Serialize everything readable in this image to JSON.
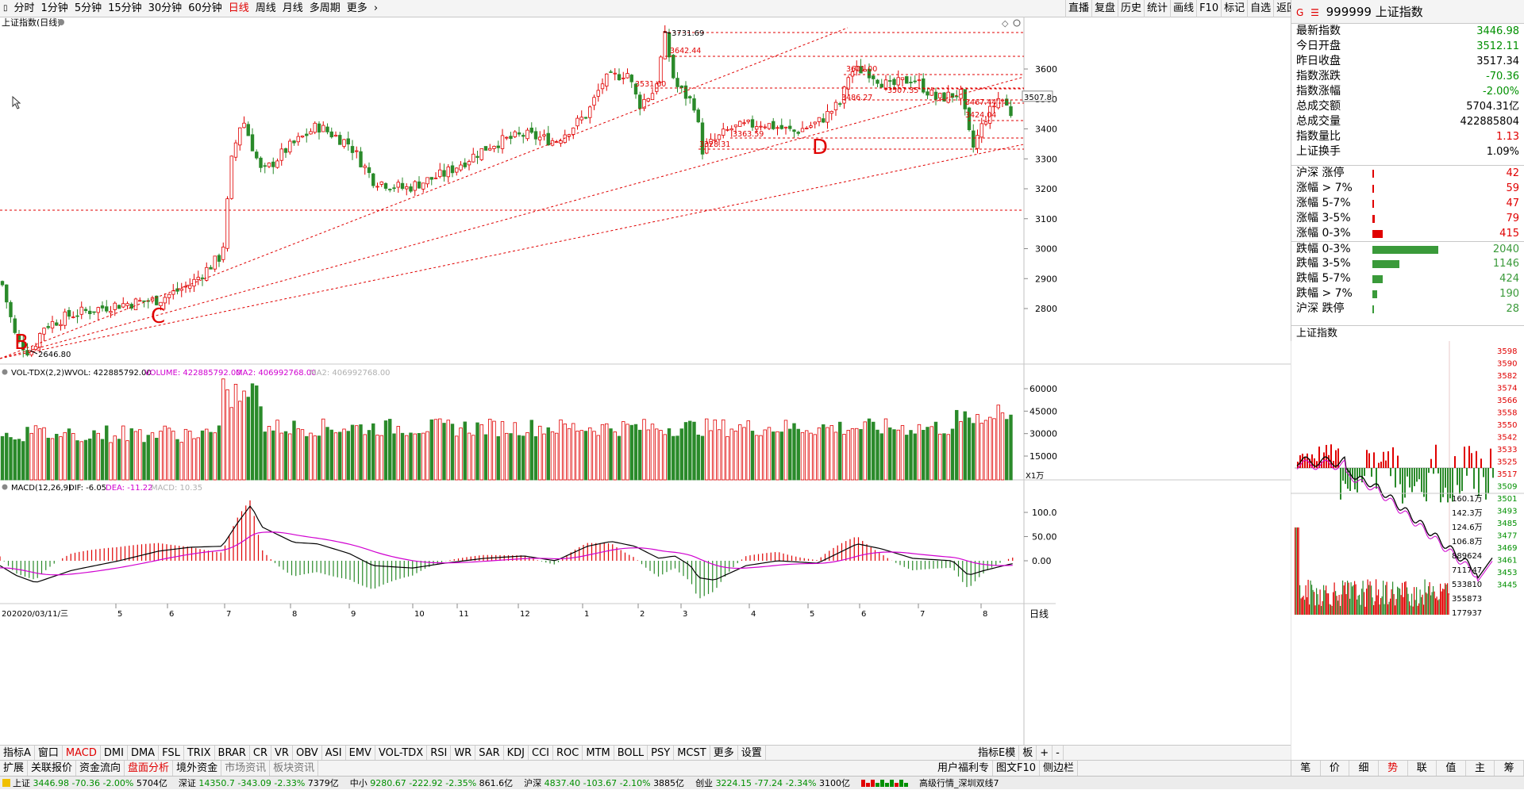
{
  "toolbar": {
    "periods": [
      {
        "label": "分时",
        "active": false
      },
      {
        "label": "1分钟",
        "active": false
      },
      {
        "label": "5分钟",
        "active": false
      },
      {
        "label": "15分钟",
        "active": false
      },
      {
        "label": "30分钟",
        "active": false
      },
      {
        "label": "60分钟",
        "active": false
      },
      {
        "label": "日线",
        "active": true
      },
      {
        "label": "周线",
        "active": false
      },
      {
        "label": "月线",
        "active": false
      },
      {
        "label": "多周期",
        "active": false
      },
      {
        "label": "更多",
        "active": false
      }
    ],
    "right_buttons": [
      "直播",
      "复盘",
      "历史",
      "统计",
      "画线",
      "F10",
      "标记",
      "自选",
      "返回"
    ]
  },
  "chart_title": "上证指数(日线)",
  "main_chart": {
    "price_axis": [
      "3600",
      "3500",
      "3400",
      "3300",
      "3200",
      "3100",
      "3000",
      "2900",
      "2800"
    ],
    "current_price_tag": "3507.8",
    "high_label": "3731.69",
    "low_label": "2646.80",
    "level_labels": [
      "3642.44",
      "3531.60",
      "3486.27",
      "3507.35",
      "3601.00",
      "3467.44",
      "3424.04",
      "3363.59",
      "3328.31"
    ],
    "annotations": [
      "B",
      "C",
      "D"
    ]
  },
  "volume_panel": {
    "title": "VOL-TDX(2,2)",
    "wvol": "WVOL: 422885792.00",
    "volume": "VOLUME: 422885792.00",
    "ma2": "MA2: 406992768.00",
    "ma2b": "MA2: 406992768.00",
    "axis": [
      "60000",
      "45000",
      "30000",
      "15000"
    ],
    "unit": "X1万"
  },
  "macd_panel": {
    "title": "MACD(12,26,9)",
    "dif": "DIF: -6.05",
    "dea": "DEA: -11.22",
    "macd": "MACD: 10.35",
    "axis": [
      "100.0",
      "50.00",
      "0.00"
    ]
  },
  "x_axis": {
    "first": "20",
    "date": "2020/03/11/三",
    "months": [
      "5",
      "6",
      "7",
      "8",
      "9",
      "10",
      "11",
      "12",
      "1",
      "2",
      "3",
      "4",
      "5",
      "6",
      "7",
      "8"
    ],
    "period": "日线"
  },
  "quote": {
    "logo": "G",
    "menu": "☰",
    "code": "999999",
    "name": "上证指数",
    "rows": [
      {
        "label": "最新指数",
        "value": "3446.98",
        "color": "#009000"
      },
      {
        "label": "今日开盘",
        "value": "3512.11",
        "color": "#009000"
      },
      {
        "label": "昨日收盘",
        "value": "3517.34",
        "color": "#000000"
      },
      {
        "label": "指数涨跌",
        "value": "-70.36",
        "color": "#009000"
      },
      {
        "label": "指数涨幅",
        "value": "-2.00%",
        "color": "#009000"
      },
      {
        "label": "总成交额",
        "value": "5704.31亿",
        "color": "#000000"
      },
      {
        "label": "总成交量",
        "value": "422885804",
        "color": "#000000"
      },
      {
        "label": "指数量比",
        "value": "1.13",
        "color": "#e00000"
      },
      {
        "label": "上证换手",
        "value": "1.09%",
        "color": "#000000"
      }
    ]
  },
  "distribution": [
    {
      "label": "沪深 涨停",
      "value": "42",
      "fraction": 0.0,
      "color": "#e00000"
    },
    {
      "label": "涨幅 > 7%",
      "value": "59",
      "fraction": 0.015,
      "color": "#e00000"
    },
    {
      "label": "涨幅 5-7%",
      "value": "47",
      "fraction": 0.012,
      "color": "#e00000"
    },
    {
      "label": "涨幅 3-5%",
      "value": "79",
      "fraction": 0.02,
      "color": "#e00000"
    },
    {
      "label": "涨幅 0-3%",
      "value": "415",
      "fraction": 0.105,
      "color": "#e00000"
    },
    {
      "label": "跌幅 0-3%",
      "value": "2040",
      "fraction": 0.66,
      "color": "#3a9a3a"
    },
    {
      "label": "跌幅 3-5%",
      "value": "1146",
      "fraction": 0.27,
      "color": "#3a9a3a"
    },
    {
      "label": "跌幅 5-7%",
      "value": "424",
      "fraction": 0.1,
      "color": "#3a9a3a"
    },
    {
      "label": "跌幅 > 7%",
      "value": "190",
      "fraction": 0.05,
      "color": "#3a9a3a"
    },
    {
      "label": "沪深 跌停",
      "value": "28",
      "fraction": 0.006,
      "color": "#3a9a3a"
    }
  ],
  "mini_chart": {
    "title": "上证指数",
    "price_axis": [
      "3598",
      "3590",
      "3582",
      "3574",
      "3566",
      "3558",
      "3550",
      "3542",
      "3533",
      "3525",
      "3517",
      "3509",
      "3501",
      "3493",
      "3485",
      "3477",
      "3469",
      "3461",
      "3453",
      "3445"
    ],
    "vol_axis": [
      "160.1万",
      "142.3万",
      "124.6万",
      "106.8万",
      "889624",
      "711747",
      "533810",
      "355873",
      "177937"
    ]
  },
  "indicator_tabs": [
    "指标A",
    "窗口",
    "MACD",
    "DMI",
    "DMA",
    "FSL",
    "TRIX",
    "BRAR",
    "CR",
    "VR",
    "OBV",
    "ASI",
    "EMV",
    "VOL-TDX",
    "RSI",
    "WR",
    "SAR",
    "KDJ",
    "CCI",
    "ROC",
    "MTM",
    "BOLL",
    "PSY",
    "MCST",
    "更多",
    "设置"
  ],
  "indicator_tabs_right": [
    "指标E模",
    "板",
    "+",
    "-"
  ],
  "func_tabs": [
    "扩展",
    "关联报价",
    "资金流向",
    "盘面分析",
    "境外资金",
    "市场资讯",
    "板块资讯"
  ],
  "func_tabs_right": [
    "用户福利专",
    "图文F10",
    "侧边栏"
  ],
  "right_bottom_tabs": [
    "笔",
    "价",
    "细",
    "势",
    "联",
    "值",
    "主",
    "筹"
  ],
  "status": {
    "items": [
      {
        "name": "上证",
        "price": "3446.98",
        "chg": "-70.36",
        "pct": "-2.00%",
        "amt": "5704亿"
      },
      {
        "name": "深证",
        "price": "14350.7",
        "chg": "-343.09",
        "pct": "-2.33%",
        "amt": "7379亿"
      },
      {
        "name": "中小",
        "price": "9280.67",
        "chg": "-222.92",
        "pct": "-2.35%",
        "amt": "861.6亿"
      },
      {
        "name": "沪深",
        "price": "4837.40",
        "chg": "-103.67",
        "pct": "-2.10%",
        "amt": "3885亿"
      },
      {
        "name": "创业",
        "price": "3224.15",
        "chg": "-77.24",
        "pct": "-2.34%",
        "amt": "3100亿"
      }
    ],
    "news": "高级行情_深圳双线7"
  },
  "colors": {
    "up": "#e00000",
    "down": "#2a8a2a",
    "dash": "#e00000",
    "accent": "#e00000"
  }
}
